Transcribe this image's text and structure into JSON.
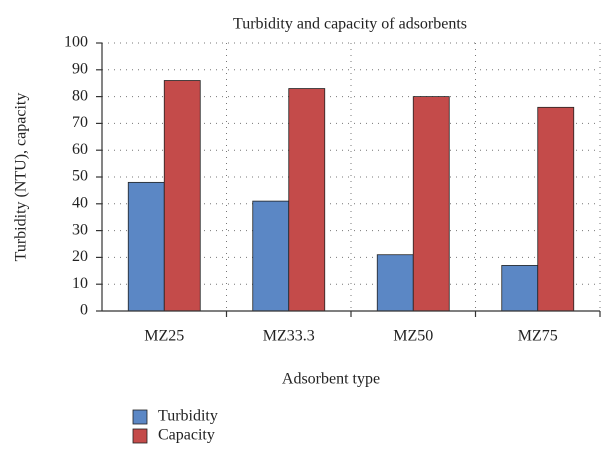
{
  "chart_data": {
    "type": "bar",
    "title": "Turbidity and capacity of adsorbents",
    "x_label": "Adsorbent type",
    "y_label": "Turbidity (NTU), capacity",
    "categories": [
      "MZ25",
      "MZ33.3",
      "MZ50",
      "MZ75"
    ],
    "series": [
      {
        "name": "Turbidity",
        "color": "#5b87c5",
        "values": [
          48,
          41,
          21,
          17
        ]
      },
      {
        "name": "Capacity",
        "color": "#c44b4a",
        "values": [
          86,
          83,
          80,
          76
        ]
      }
    ],
    "ylim": [
      0,
      100
    ],
    "yticks": [
      0,
      10,
      20,
      30,
      40,
      50,
      60,
      70,
      80,
      90,
      100
    ],
    "grid": true,
    "legend": "bottom-left"
  }
}
